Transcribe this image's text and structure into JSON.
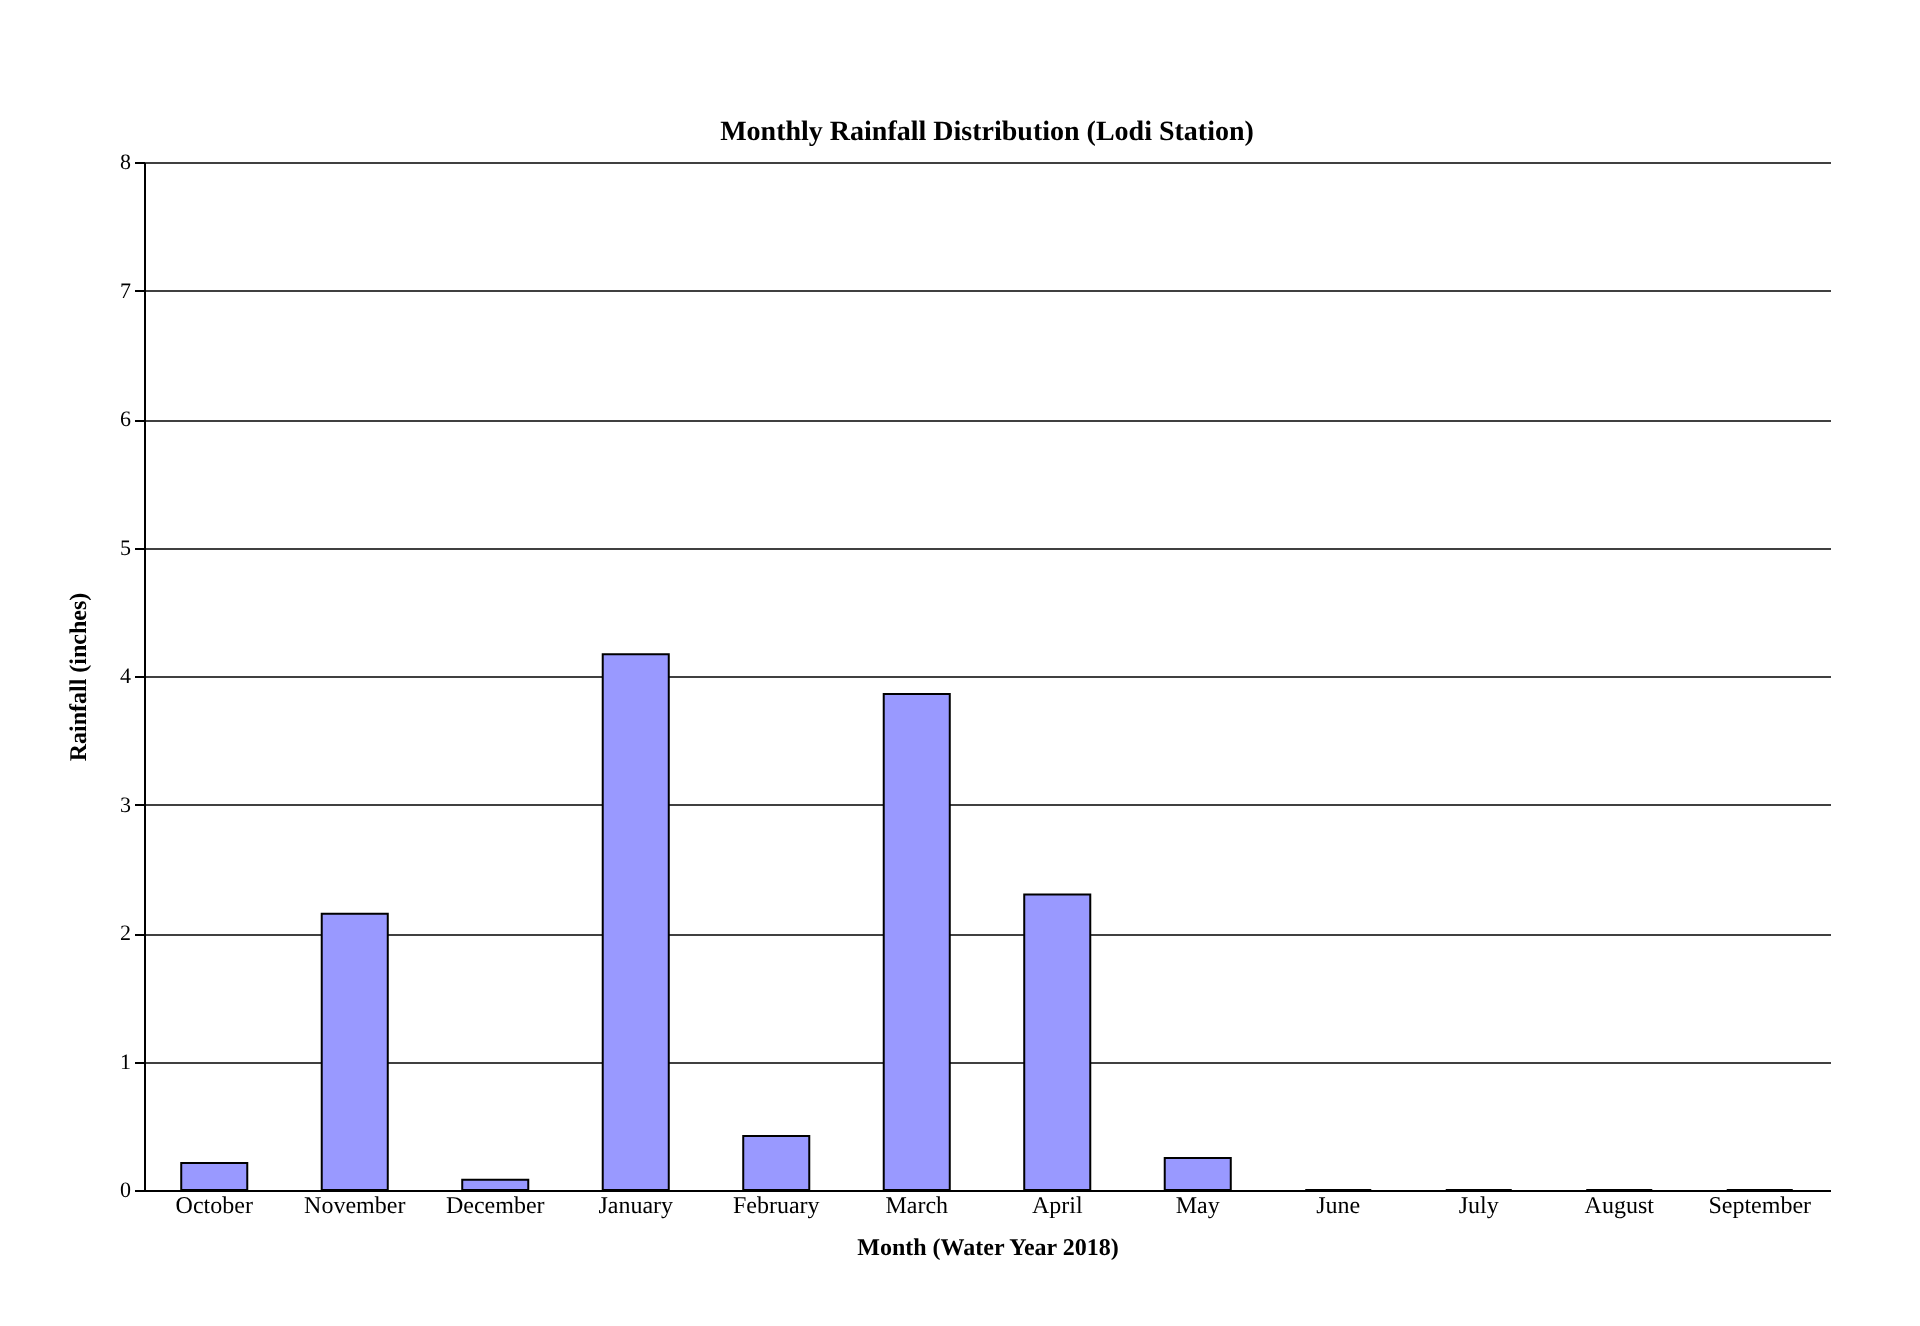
{
  "chart_data": {
    "type": "bar",
    "title": "Monthly Rainfall Distribution  (Lodi Station)",
    "xlabel": "Month (Water Year 2018)",
    "ylabel": "Rainfall (inches)",
    "categories": [
      "October",
      "November",
      "December",
      "January",
      "February",
      "March",
      "April",
      "May",
      "June",
      "July",
      "August",
      "September"
    ],
    "values": [
      0.21,
      2.15,
      0.08,
      4.17,
      0.42,
      3.86,
      2.3,
      0.25,
      0,
      0,
      0,
      0
    ],
    "color": "#9999ff",
    "ylim": [
      0,
      8
    ],
    "yticks": [
      0,
      1,
      2,
      3,
      4,
      5,
      6,
      7,
      8
    ],
    "grid": "y"
  }
}
